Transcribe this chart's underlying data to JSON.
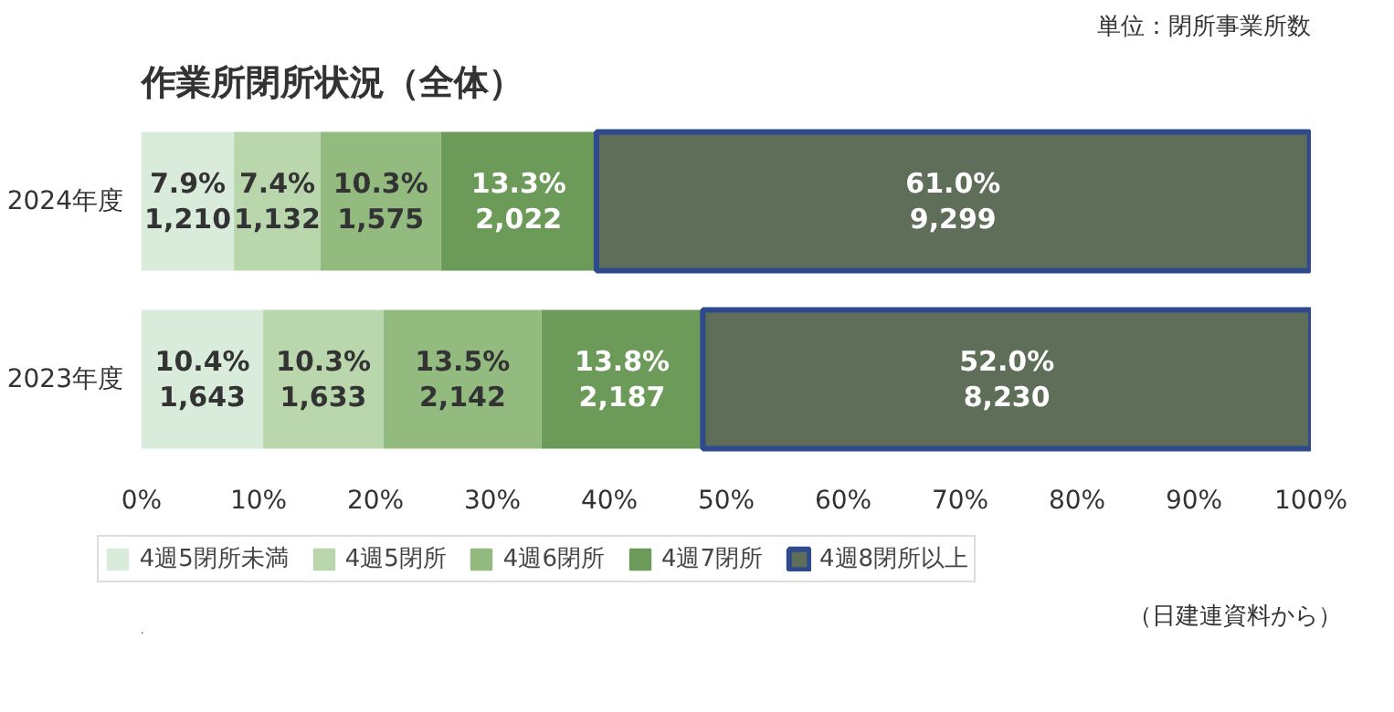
{
  "chart_data": {
    "type": "bar",
    "orientation": "horizontal",
    "stacked": true,
    "title": "作業所閉所状況（全体）",
    "annotations": [
      "単位：閉所事業所数",
      "（日建連資料から）"
    ],
    "categories": [
      "2024年度",
      "2023年度"
    ],
    "series": [
      {
        "name": "4週5閉所未満",
        "color": "#d9ecdc",
        "values": [
          7.9,
          10.4
        ],
        "value_labels": [
          "7.9%\n1,210",
          "10.4%\n1,643"
        ]
      },
      {
        "name": "4週5閉所",
        "color": "#b9d6ad",
        "values": [
          7.4,
          10.3
        ],
        "value_labels": [
          "7.4%\n1,132",
          "10.3%\n1,633"
        ]
      },
      {
        "name": "4週6閉所",
        "color": "#93bb80",
        "values": [
          10.3,
          13.5
        ],
        "value_labels": [
          "10.3%\n1,575",
          "13.5%\n2,142"
        ]
      },
      {
        "name": "4週7閉所",
        "color": "#6c9a58",
        "values": [
          13.3,
          13.8
        ],
        "value_labels": [
          "13.3%\n2,022",
          "13.8%\n2,187"
        ]
      },
      {
        "name": "4週8閉所以上",
        "color": "#5e6e58",
        "values": [
          61.0,
          52.0
        ],
        "value_labels": [
          "61.0%\n9,299",
          "52.0%\n8,230"
        ]
      }
    ],
    "xlim": [
      0,
      100
    ],
    "xticks": [
      {
        "value": 0,
        "label": "0%"
      },
      {
        "value": 10,
        "label": "10%"
      },
      {
        "value": 20,
        "label": "20%"
      },
      {
        "value": 30,
        "label": "30%"
      },
      {
        "value": 40,
        "label": "40%"
      },
      {
        "value": 50,
        "label": "50%"
      },
      {
        "value": 60,
        "label": "60%"
      },
      {
        "value": 70,
        "label": "70%"
      },
      {
        "value": 80,
        "label": "80%"
      },
      {
        "value": 90,
        "label": "90%"
      },
      {
        "value": 100,
        "label": "100%"
      }
    ],
    "legend": "bottom",
    "grid": false
  }
}
